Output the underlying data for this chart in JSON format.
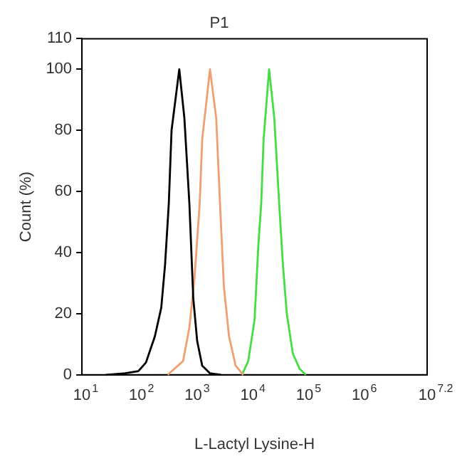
{
  "chart_data": {
    "type": "line",
    "title": "P1",
    "xlabel": "L-Lactyl Lysine-H",
    "ylabel": "Count (%)",
    "log": "x",
    "xlim": [
      10,
      15848931.9
    ],
    "xticks": [
      {
        "value": 10,
        "label": "10$^{1}$"
      },
      {
        "value": 100,
        "label": "10$^{2}$"
      },
      {
        "value": 1000,
        "label": "10$^{3}$"
      },
      {
        "value": 10000,
        "label": "10$^{4}$"
      },
      {
        "value": 100000,
        "label": "10$^{5}$"
      },
      {
        "value": 1000000,
        "label": "10$^{6}$"
      },
      {
        "value": 15848931.9,
        "label": "10$^{7.2}$"
      }
    ],
    "ylim": [
      0,
      110
    ],
    "yticks": [
      0,
      20,
      40,
      60,
      80,
      100,
      110
    ],
    "grid": false,
    "legend": false,
    "marker": "none",
    "line_style": "solid",
    "series": [
      {
        "color": "#000000",
        "x": [
          27,
          60,
          103,
          141,
          204,
          266,
          311,
          363,
          407,
          560,
          692,
          851,
          1000,
          1175,
          1445,
          1995,
          3162
        ],
        "values": [
          0,
          0.5,
          1.2,
          4,
          12.6,
          22,
          36,
          56,
          80,
          100,
          84,
          56,
          25,
          11,
          3,
          0.5,
          0
        ]
      },
      {
        "color": "#f0a070",
        "x": [
          347,
          655,
          851,
          1054,
          1303,
          1445,
          1995,
          2580,
          3020,
          3540,
          4380,
          5760,
          7900
        ],
        "values": [
          0,
          4.5,
          15.5,
          32,
          56,
          77,
          100,
          84,
          56,
          29,
          12.6,
          3,
          0
        ]
      },
      {
        "color": "#44dd44",
        "x": [
          7500,
          9700,
          12600,
          14800,
          16600,
          18300,
          23000,
          28500,
          34900,
          40700,
          47800,
          61300,
          81000,
          105000
        ],
        "values": [
          0,
          4.5,
          18,
          43,
          56,
          77,
          100,
          84,
          56,
          36,
          20,
          7,
          2,
          0
        ]
      }
    ]
  }
}
